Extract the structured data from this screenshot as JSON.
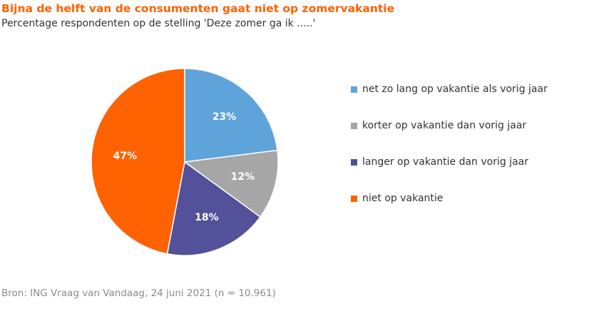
{
  "title": "Bijna de helft van de consumenten gaat niet op zomervakantie",
  "subtitle": "Percentage respondenten op de stelling 'Deze zomer ga ik .....'",
  "source": "Bron: ING Vraag van Vandaag, 24 juni 2021 (n = 10.961)",
  "chart_data": {
    "type": "pie",
    "title": "Bijna de helft van de consumenten gaat niet op zomervakantie",
    "subtitle": "Percentage respondenten op de stelling 'Deze zomer ga ik .....'",
    "legend_position": "right",
    "slices": [
      {
        "label": "net zo lang op vakantie als vorig jaar",
        "value": 23,
        "display": "23%",
        "color": "#5fa3db",
        "label_color": "#ffffff"
      },
      {
        "label": "korter op vakantie dan vorig jaar",
        "value": 12,
        "display": "12%",
        "color": "#a6a6a6",
        "label_color": "#ffffff"
      },
      {
        "label": "langer op vakantie dan vorig jaar",
        "value": 18,
        "display": "18%",
        "color": "#525199",
        "label_color": "#ffffff"
      },
      {
        "label": "niet op vakantie",
        "value": 47,
        "display": "47%",
        "color": "#ff6200",
        "label_color": "#ffffff"
      }
    ]
  }
}
